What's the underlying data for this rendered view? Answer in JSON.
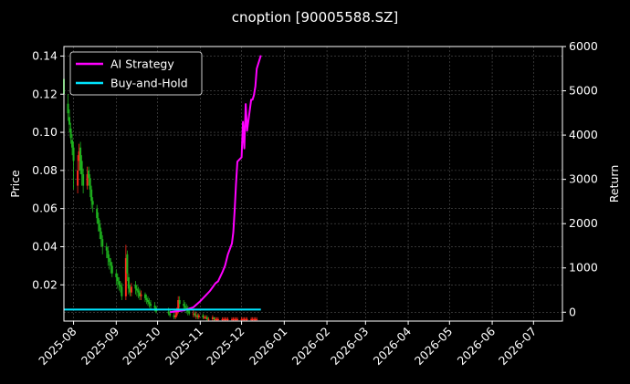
{
  "chart_data": {
    "type": "candlestick_with_return_lines",
    "title": "cnoption [90005588.SZ]",
    "ylabel_left": "Price",
    "ylabel_right": "Return",
    "x_range": [
      "2025-07-25",
      "2026-07-22"
    ],
    "ylim_left": [
      0.001,
      0.145
    ],
    "ylim_right": [
      -200,
      6000
    ],
    "grid": true,
    "legend_position": "top-left",
    "colors": {
      "background": "#000000",
      "up_candle": "#ff2a1a",
      "down_candle": "#1eb31e",
      "ai_strategy": "#ff00ff",
      "buy_and_hold": "#00e5ff",
      "grid": "#555555",
      "axes": "#ffffff"
    },
    "x_ticks": [
      "2025-08",
      "2025-09",
      "2025-10",
      "2025-11",
      "2025-12",
      "2026-01",
      "2026-02",
      "2026-03",
      "2026-04",
      "2026-05",
      "2026-06",
      "2026-07"
    ],
    "y_ticks_left": [
      "0.02",
      "0.04",
      "0.06",
      "0.08",
      "0.10",
      "0.12",
      "0.14"
    ],
    "y_ticks_right": [
      "0",
      "1000",
      "2000",
      "3000",
      "4000",
      "5000",
      "6000"
    ],
    "series": [
      {
        "name": "AI Strategy",
        "axis": "right",
        "x": [
          "2025-10-10",
          "2025-10-20",
          "2025-10-27",
          "2025-11-01",
          "2025-11-05",
          "2025-11-08",
          "2025-11-12",
          "2025-11-14",
          "2025-11-17",
          "2025-11-19",
          "2025-11-21",
          "2025-11-24",
          "2025-11-25",
          "2025-11-26",
          "2025-11-27",
          "2025-11-28",
          "2025-12-01",
          "2025-12-02",
          "2025-12-03",
          "2025-12-04",
          "2025-12-05",
          "2025-12-08",
          "2025-12-09",
          "2025-12-10",
          "2025-12-11",
          "2025-12-12",
          "2025-12-15"
        ],
        "values": [
          0,
          40,
          110,
          250,
          380,
          480,
          650,
          700,
          900,
          1050,
          1300,
          1550,
          1800,
          2300,
          2900,
          3400,
          3500,
          4300,
          3700,
          4700,
          4100,
          4800,
          4800,
          4900,
          5100,
          5500,
          5800
        ]
      },
      {
        "name": "Buy-and-Hold",
        "axis": "right",
        "x": [
          "2025-07-25",
          "2025-12-15"
        ],
        "values": [
          60,
          60
        ]
      }
    ],
    "candles": {
      "x": [
        "2025-07-25",
        "2025-07-28",
        "2025-07-29",
        "2025-07-30",
        "2025-07-31",
        "2025-08-01",
        "2025-08-04",
        "2025-08-05",
        "2025-08-06",
        "2025-08-07",
        "2025-08-08",
        "2025-08-11",
        "2025-08-12",
        "2025-08-13",
        "2025-08-14",
        "2025-08-15",
        "2025-08-18",
        "2025-08-19",
        "2025-08-20",
        "2025-08-21",
        "2025-08-22",
        "2025-08-25",
        "2025-08-26",
        "2025-08-27",
        "2025-08-28",
        "2025-08-29",
        "2025-09-01",
        "2025-09-02",
        "2025-09-03",
        "2025-09-04",
        "2025-09-05",
        "2025-09-08",
        "2025-09-09",
        "2025-09-10",
        "2025-09-11",
        "2025-09-12",
        "2025-09-15",
        "2025-09-16",
        "2025-09-17",
        "2025-09-18",
        "2025-09-19",
        "2025-09-22",
        "2025-09-23",
        "2025-09-24",
        "2025-09-25",
        "2025-09-26",
        "2025-09-29",
        "2025-09-30",
        "2025-10-09",
        "2025-10-10",
        "2025-10-13",
        "2025-10-14",
        "2025-10-15",
        "2025-10-16",
        "2025-10-17",
        "2025-10-20",
        "2025-10-21",
        "2025-10-22",
        "2025-10-23",
        "2025-10-24",
        "2025-10-27",
        "2025-10-28",
        "2025-10-29",
        "2025-10-30",
        "2025-10-31",
        "2025-11-03",
        "2025-11-04",
        "2025-11-05",
        "2025-11-06",
        "2025-11-07",
        "2025-11-10",
        "2025-11-11",
        "2025-11-12",
        "2025-11-13",
        "2025-11-14",
        "2025-11-17",
        "2025-11-18",
        "2025-11-19",
        "2025-11-20",
        "2025-11-21",
        "2025-11-24",
        "2025-11-25",
        "2025-11-26",
        "2025-11-27",
        "2025-11-28",
        "2025-12-01",
        "2025-12-02",
        "2025-12-03",
        "2025-12-04",
        "2025-12-05",
        "2025-12-08",
        "2025-12-09",
        "2025-12-10",
        "2025-12-11",
        "2025-12-12"
      ],
      "open": [
        0.128,
        0.115,
        0.108,
        0.102,
        0.096,
        0.092,
        0.072,
        0.085,
        0.092,
        0.085,
        0.078,
        0.072,
        0.08,
        0.076,
        0.07,
        0.064,
        0.06,
        0.055,
        0.052,
        0.048,
        0.044,
        0.04,
        0.038,
        0.034,
        0.032,
        0.03,
        0.026,
        0.024,
        0.022,
        0.02,
        0.019,
        0.014,
        0.036,
        0.024,
        0.018,
        0.016,
        0.02,
        0.018,
        0.017,
        0.016,
        0.014,
        0.015,
        0.013,
        0.012,
        0.011,
        0.01,
        0.009,
        0.008,
        0.006,
        0.005,
        0.004,
        0.003,
        0.004,
        0.006,
        0.012,
        0.01,
        0.009,
        0.008,
        0.007,
        0.006,
        0.005,
        0.005,
        0.004,
        0.004,
        0.003,
        0.004,
        0.003,
        0.003,
        0.003,
        0.002,
        0.002,
        0.003,
        0.002,
        0.002,
        0.002,
        0.002,
        0.002,
        0.002,
        0.002,
        0.002,
        0.002,
        0.002,
        0.002,
        0.002,
        0.002,
        0.002,
        0.002,
        0.002,
        0.002,
        0.002,
        0.002,
        0.002,
        0.002,
        0.002,
        0.002
      ],
      "close": [
        0.12,
        0.11,
        0.104,
        0.097,
        0.092,
        0.085,
        0.08,
        0.09,
        0.08,
        0.078,
        0.072,
        0.078,
        0.076,
        0.07,
        0.064,
        0.062,
        0.055,
        0.052,
        0.048,
        0.044,
        0.04,
        0.038,
        0.034,
        0.032,
        0.03,
        0.026,
        0.024,
        0.022,
        0.02,
        0.019,
        0.014,
        0.034,
        0.026,
        0.018,
        0.016,
        0.019,
        0.018,
        0.017,
        0.016,
        0.014,
        0.015,
        0.013,
        0.012,
        0.011,
        0.01,
        0.009,
        0.008,
        0.006,
        0.005,
        0.004,
        0.003,
        0.004,
        0.006,
        0.012,
        0.01,
        0.009,
        0.008,
        0.007,
        0.006,
        0.005,
        0.005,
        0.004,
        0.004,
        0.003,
        0.004,
        0.003,
        0.003,
        0.003,
        0.002,
        0.002,
        0.003,
        0.002,
        0.002,
        0.002,
        0.002,
        0.002,
        0.002,
        0.002,
        0.002,
        0.002,
        0.002,
        0.002,
        0.002,
        0.002,
        0.002,
        0.002,
        0.002,
        0.002,
        0.002,
        0.002,
        0.002,
        0.002,
        0.002,
        0.002,
        0.002
      ],
      "high": [
        0.135,
        0.12,
        0.112,
        0.105,
        0.099,
        0.095,
        0.088,
        0.094,
        0.095,
        0.088,
        0.081,
        0.082,
        0.082,
        0.078,
        0.072,
        0.066,
        0.062,
        0.058,
        0.054,
        0.05,
        0.046,
        0.042,
        0.04,
        0.036,
        0.034,
        0.032,
        0.028,
        0.026,
        0.024,
        0.022,
        0.021,
        0.041,
        0.038,
        0.026,
        0.02,
        0.021,
        0.022,
        0.02,
        0.019,
        0.018,
        0.017,
        0.016,
        0.015,
        0.014,
        0.013,
        0.012,
        0.011,
        0.009,
        0.008,
        0.007,
        0.006,
        0.006,
        0.008,
        0.014,
        0.014,
        0.012,
        0.011,
        0.01,
        0.009,
        0.008,
        0.007,
        0.006,
        0.006,
        0.005,
        0.005,
        0.005,
        0.004,
        0.004,
        0.004,
        0.003,
        0.004,
        0.003,
        0.003,
        0.003,
        0.003,
        0.003,
        0.003,
        0.003,
        0.003,
        0.003,
        0.003,
        0.003,
        0.003,
        0.003,
        0.003,
        0.003,
        0.003,
        0.003,
        0.003,
        0.003,
        0.003,
        0.003,
        0.003,
        0.003,
        0.003
      ],
      "low": [
        0.118,
        0.106,
        0.1,
        0.094,
        0.088,
        0.07,
        0.068,
        0.08,
        0.078,
        0.072,
        0.068,
        0.07,
        0.072,
        0.066,
        0.06,
        0.058,
        0.052,
        0.048,
        0.044,
        0.04,
        0.036,
        0.034,
        0.03,
        0.028,
        0.026,
        0.024,
        0.02,
        0.018,
        0.017,
        0.016,
        0.012,
        0.012,
        0.022,
        0.015,
        0.014,
        0.014,
        0.015,
        0.014,
        0.013,
        0.012,
        0.012,
        0.011,
        0.01,
        0.009,
        0.008,
        0.007,
        0.006,
        0.005,
        0.004,
        0.003,
        0.002,
        0.002,
        0.003,
        0.005,
        0.008,
        0.007,
        0.006,
        0.005,
        0.004,
        0.004,
        0.003,
        0.003,
        0.002,
        0.002,
        0.002,
        0.002,
        0.002,
        0.002,
        0.001,
        0.001,
        0.001,
        0.001,
        0.001,
        0.001,
        0.001,
        0.001,
        0.001,
        0.001,
        0.001,
        0.001,
        0.001,
        0.001,
        0.001,
        0.001,
        0.001,
        0.001,
        0.001,
        0.001,
        0.001,
        0.001,
        0.001,
        0.001,
        0.001,
        0.001,
        0.001
      ]
    }
  }
}
